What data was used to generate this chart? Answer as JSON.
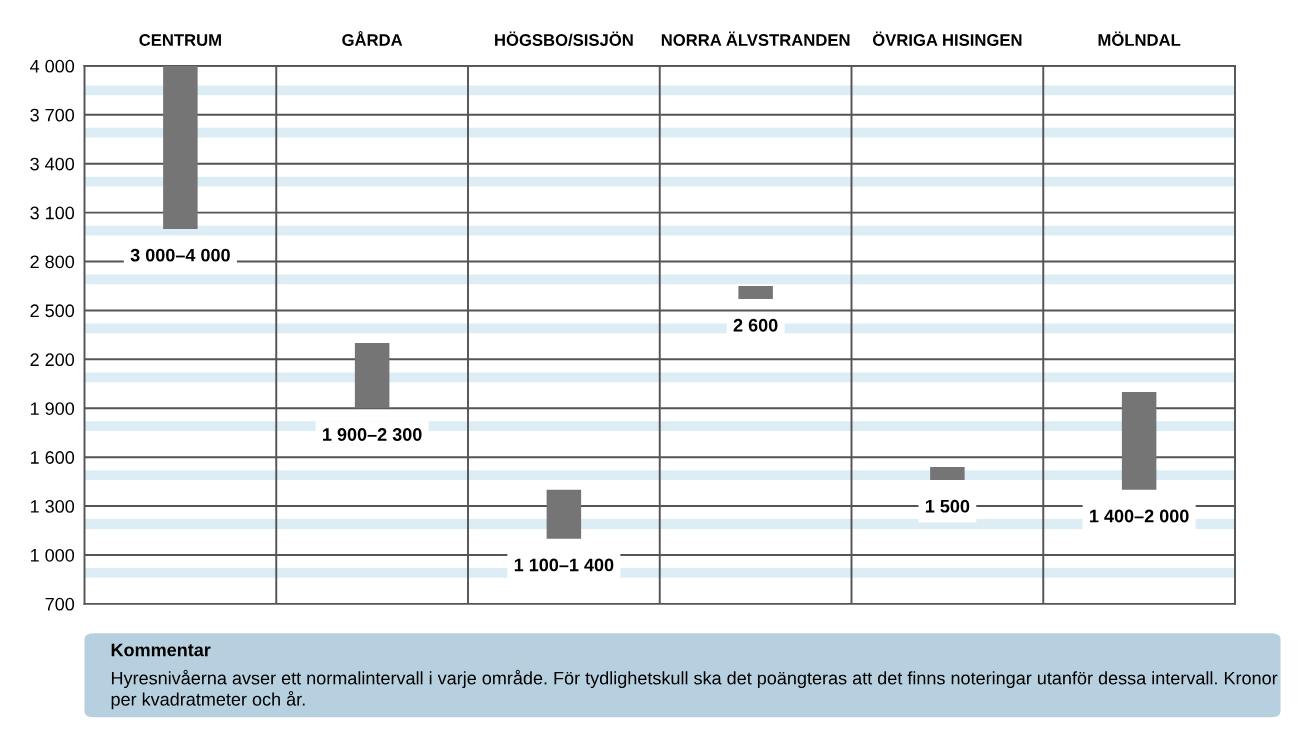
{
  "chart_data": {
    "type": "bar",
    "categories": [
      "CENTRUM",
      "GÅRDA",
      "HÖGSBO/SISJÖN",
      "NORRA ÄLVSTRANDEN",
      "ÖVRIGA HISINGEN",
      "MÖLNDAL"
    ],
    "base": [
      3000,
      1900,
      1100,
      2570,
      1460,
      1400
    ],
    "values": [
      1000,
      400,
      300,
      80,
      80,
      600
    ],
    "color": "#757575",
    "ylim": [
      700,
      4000
    ],
    "yticks": [
      {
        "value": 700,
        "label": "700"
      },
      {
        "value": 1000,
        "label": "1 000"
      },
      {
        "value": 1300,
        "label": "1 300"
      },
      {
        "value": 1600,
        "label": "1 600"
      },
      {
        "value": 1900,
        "label": "1 900"
      },
      {
        "value": 2200,
        "label": "2 200"
      },
      {
        "value": 2500,
        "label": "2 500"
      },
      {
        "value": 2800,
        "label": "2 800"
      },
      {
        "value": 3100,
        "label": "3 100"
      },
      {
        "value": 3400,
        "label": "3 400"
      },
      {
        "value": 3700,
        "label": "3 700"
      },
      {
        "value": 4000,
        "label": "4 000"
      }
    ],
    "grid": true,
    "bands": [
      {
        "axis": "y",
        "from": 3820,
        "to": 3880,
        "color": "#dcedf6"
      },
      {
        "axis": "y",
        "from": 3560,
        "to": 3620,
        "color": "#dcedf6"
      },
      {
        "axis": "y",
        "from": 3260,
        "to": 3320,
        "color": "#dcedf6"
      },
      {
        "axis": "y",
        "from": 2960,
        "to": 3020,
        "color": "#dcedf6"
      },
      {
        "axis": "y",
        "from": 2660,
        "to": 2720,
        "color": "#dcedf6"
      },
      {
        "axis": "y",
        "from": 2360,
        "to": 2420,
        "color": "#dcedf6"
      },
      {
        "axis": "y",
        "from": 2060,
        "to": 2120,
        "color": "#dcedf6"
      },
      {
        "axis": "y",
        "from": 1760,
        "to": 1820,
        "color": "#dcedf6"
      },
      {
        "axis": "y",
        "from": 1460,
        "to": 1520,
        "color": "#dcedf6"
      },
      {
        "axis": "y",
        "from": 1160,
        "to": 1220,
        "color": "#dcedf6"
      },
      {
        "axis": "y",
        "from": 860,
        "to": 920,
        "color": "#dcedf6"
      }
    ],
    "annotations": [
      {
        "text": "3 000–4 000",
        "x": "CENTRUM",
        "y": 3000
      },
      {
        "text": "1 900–2 300",
        "x": "GÅRDA",
        "y": 1900
      },
      {
        "text": "1 100–1 400",
        "x": "HÖGSBO/SISJÖN",
        "y": 1100
      },
      {
        "text": "2 600",
        "x": "NORRA ÄLVSTRANDEN",
        "y": 2570
      },
      {
        "text": "1 500",
        "x": "ÖVRIGA HISINGEN",
        "y": 1460
      },
      {
        "text": "1 400–2 000",
        "x": "MÖLNDAL",
        "y": 1400
      },
      "Kommentar",
      "Hyresnivåerna avser ett normalintervall i varje område. För tydlighetskull ska det poängteras att det finns noteringar utanför dessa intervall. Kronor per kvadratmeter och år."
    ]
  }
}
